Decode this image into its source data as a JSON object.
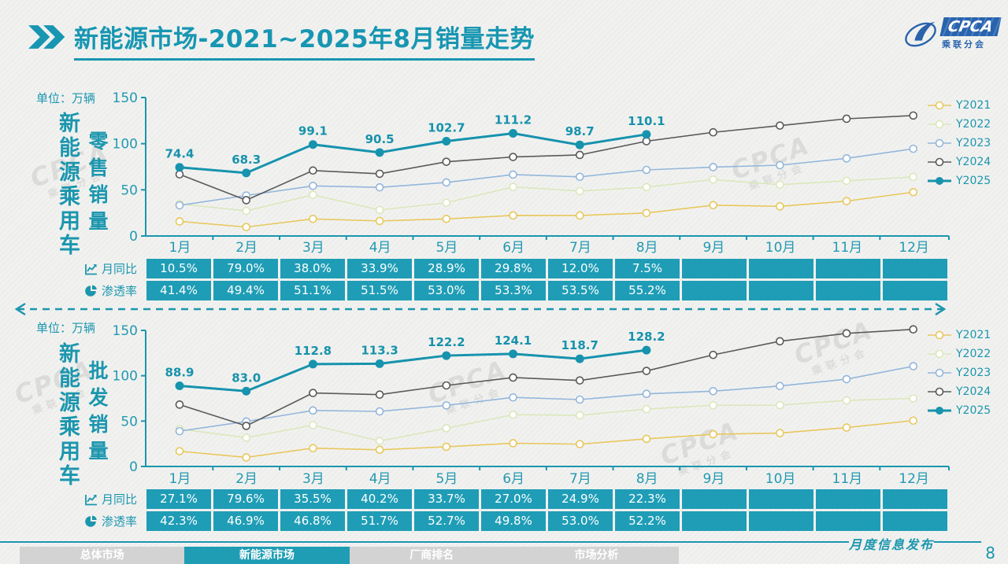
{
  "header": {
    "title": "新能源市场-2021~2025年8月销量走势",
    "logo": {
      "abbr": "CPCA",
      "cn": "乘联分会"
    }
  },
  "colors": {
    "accent_teal": "#1b96ae",
    "table_cell": "#1f9db6",
    "logo_blue": "#2a63ac",
    "y2021": "#e9c75e",
    "y2022": "#dbe7bb",
    "y2023": "#94b6db",
    "y2024": "#5a5a5a",
    "y2025": "#1793ad"
  },
  "watermark": {
    "abbr": "CPCA",
    "cn": "乘联分会"
  },
  "sections": [
    {
      "unit_label": "单位：",
      "unit_value": "万辆",
      "category_label": "新能源乘用车",
      "metric_label": "零售销量",
      "table": {
        "rows": [
          {
            "icon": "line-chart-icon",
            "label": "月同比",
            "values": [
              "10.5%",
              "79.0%",
              "38.0%",
              "33.9%",
              "28.9%",
              "29.8%",
              "12.0%",
              "7.5%",
              "",
              "",
              "",
              ""
            ]
          },
          {
            "icon": "pie-chart-icon",
            "label": "渗透率",
            "values": [
              "41.4%",
              "49.4%",
              "51.1%",
              "51.5%",
              "53.0%",
              "53.3%",
              "53.5%",
              "55.2%",
              "",
              "",
              "",
              ""
            ]
          }
        ]
      }
    },
    {
      "unit_label": "单位：",
      "unit_value": "万辆",
      "category_label": "新能源乘用车",
      "metric_label": "批发销量",
      "table": {
        "rows": [
          {
            "icon": "line-chart-icon",
            "label": "月同比",
            "values": [
              "27.1%",
              "79.6%",
              "35.5%",
              "40.2%",
              "33.7%",
              "27.0%",
              "24.9%",
              "22.3%",
              "",
              "",
              "",
              ""
            ]
          },
          {
            "icon": "pie-chart-icon",
            "label": "渗透率",
            "values": [
              "42.3%",
              "46.9%",
              "46.8%",
              "51.7%",
              "52.7%",
              "49.8%",
              "53.0%",
              "52.2%",
              "",
              "",
              "",
              ""
            ]
          }
        ]
      }
    }
  ],
  "chart_data": [
    {
      "type": "line",
      "title": "新能源乘用车零售销量",
      "unit": "万辆",
      "categories": [
        "1月",
        "2月",
        "3月",
        "4月",
        "5月",
        "6月",
        "7月",
        "8月",
        "9月",
        "10月",
        "11月",
        "12月"
      ],
      "ylim": [
        0,
        150
      ],
      "y_ticks": [
        0,
        50,
        100,
        150
      ],
      "legend_position": "right",
      "grid": false,
      "series": [
        {
          "name": "Y2021",
          "color": "#e9c75e",
          "marker": "hollow",
          "labeled": false,
          "values": [
            15.8,
            9.7,
            18.5,
            16.3,
            18.5,
            22.3,
            22.2,
            24.9,
            33.4,
            32.1,
            37.8,
            47.5
          ]
        },
        {
          "name": "Y2022",
          "color": "#dbe7bb",
          "marker": "hollow",
          "labeled": false,
          "values": [
            34.7,
            27.2,
            44.5,
            28.2,
            36.0,
            53.2,
            48.6,
            52.9,
            61.1,
            55.6,
            59.8,
            64.0
          ]
        },
        {
          "name": "Y2023",
          "color": "#94b6db",
          "marker": "hollow",
          "labeled": false,
          "values": [
            33.2,
            43.9,
            54.3,
            52.7,
            58.0,
            66.5,
            64.1,
            71.6,
            74.6,
            76.7,
            84.1,
            94.5
          ]
        },
        {
          "name": "Y2024",
          "color": "#5a5a5a",
          "marker": "hollow",
          "labeled": false,
          "values": [
            66.8,
            38.8,
            70.9,
            67.4,
            80.4,
            85.6,
            87.8,
            102.7,
            112.3,
            119.6,
            127.0,
            130.5
          ]
        },
        {
          "name": "Y2025",
          "color": "#1793ad",
          "marker": "filled",
          "labeled": true,
          "values": [
            74.4,
            68.3,
            99.1,
            90.5,
            102.7,
            111.2,
            98.7,
            110.1
          ]
        }
      ]
    },
    {
      "type": "line",
      "title": "新能源乘用车批发销量",
      "unit": "万辆",
      "categories": [
        "1月",
        "2月",
        "3月",
        "4月",
        "5月",
        "6月",
        "7月",
        "8月",
        "9月",
        "10月",
        "11月",
        "12月"
      ],
      "ylim": [
        0,
        150
      ],
      "y_ticks": [
        0,
        50,
        100,
        150
      ],
      "legend_position": "right",
      "grid": false,
      "series": [
        {
          "name": "Y2021",
          "color": "#e9c75e",
          "marker": "hollow",
          "labeled": false,
          "values": [
            16.8,
            10.0,
            20.2,
            18.4,
            21.7,
            25.6,
            24.6,
            30.4,
            35.5,
            36.8,
            42.9,
            50.5
          ]
        },
        {
          "name": "Y2022",
          "color": "#dbe7bb",
          "marker": "hollow",
          "labeled": false,
          "values": [
            41.2,
            31.7,
            45.5,
            28.0,
            42.1,
            57.1,
            56.4,
            63.2,
            67.5,
            67.6,
            72.8,
            75.0
          ]
        },
        {
          "name": "Y2023",
          "color": "#94b6db",
          "marker": "hollow",
          "labeled": false,
          "values": [
            38.9,
            49.6,
            61.7,
            60.7,
            67.3,
            76.1,
            73.7,
            80.0,
            83.0,
            88.7,
            96.2,
            110.5
          ]
        },
        {
          "name": "Y2024",
          "color": "#5a5a5a",
          "marker": "hollow",
          "labeled": false,
          "values": [
            68.2,
            44.7,
            81.0,
            79.2,
            89.3,
            98.0,
            94.8,
            105.3,
            123.0,
            138.0,
            146.7,
            151.1
          ]
        },
        {
          "name": "Y2025",
          "color": "#1793ad",
          "marker": "filled",
          "labeled": true,
          "values": [
            88.9,
            83.0,
            112.8,
            113.3,
            122.2,
            124.1,
            118.7,
            128.2
          ]
        }
      ]
    }
  ],
  "footer": {
    "tabs": [
      {
        "label": "总体市场",
        "active": false
      },
      {
        "label": "新能源市场",
        "active": true
      },
      {
        "label": "厂商排名",
        "active": false
      },
      {
        "label": "市场分析",
        "active": false
      }
    ],
    "publication": "月度信息发布",
    "page_number": "8"
  }
}
